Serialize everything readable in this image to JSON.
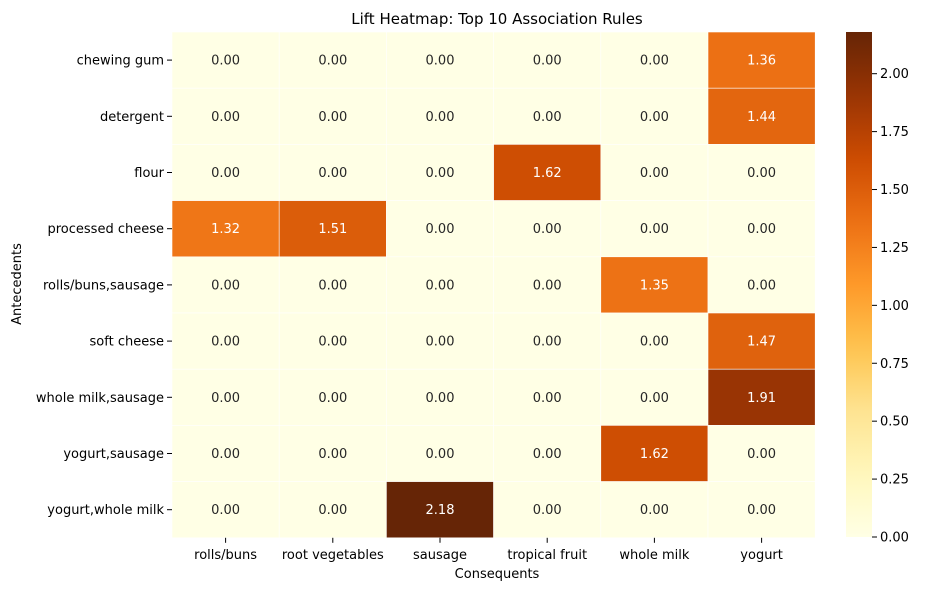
{
  "chart_data": {
    "type": "heatmap",
    "title": "Lift Heatmap: Top 10 Association Rules",
    "xlabel": "Consequents",
    "ylabel": "Antecedents",
    "x_categories": [
      "rolls/buns",
      "root vegetables",
      "sausage",
      "tropical fruit",
      "whole milk",
      "yogurt"
    ],
    "y_categories": [
      "chewing gum",
      "detergent",
      "flour",
      "processed cheese",
      "rolls/buns,sausage",
      "soft cheese",
      "whole milk,sausage",
      "yogurt,sausage",
      "yogurt,whole milk"
    ],
    "values": [
      [
        0.0,
        0.0,
        0.0,
        0.0,
        0.0,
        1.36
      ],
      [
        0.0,
        0.0,
        0.0,
        0.0,
        0.0,
        1.44
      ],
      [
        0.0,
        0.0,
        0.0,
        1.62,
        0.0,
        0.0
      ],
      [
        1.32,
        1.51,
        0.0,
        0.0,
        0.0,
        0.0
      ],
      [
        0.0,
        0.0,
        0.0,
        0.0,
        1.35,
        0.0
      ],
      [
        0.0,
        0.0,
        0.0,
        0.0,
        0.0,
        1.47
      ],
      [
        0.0,
        0.0,
        0.0,
        0.0,
        0.0,
        1.91
      ],
      [
        0.0,
        0.0,
        0.0,
        0.0,
        1.62,
        0.0
      ],
      [
        0.0,
        0.0,
        2.18,
        0.0,
        0.0,
        0.0
      ]
    ],
    "colorbar": {
      "min": 0.0,
      "max": 2.18,
      "ticks": [
        "0.00",
        "0.25",
        "0.50",
        "0.75",
        "1.00",
        "1.25",
        "1.50",
        "1.75",
        "2.00"
      ],
      "colormap": "YlOrBr"
    }
  }
}
